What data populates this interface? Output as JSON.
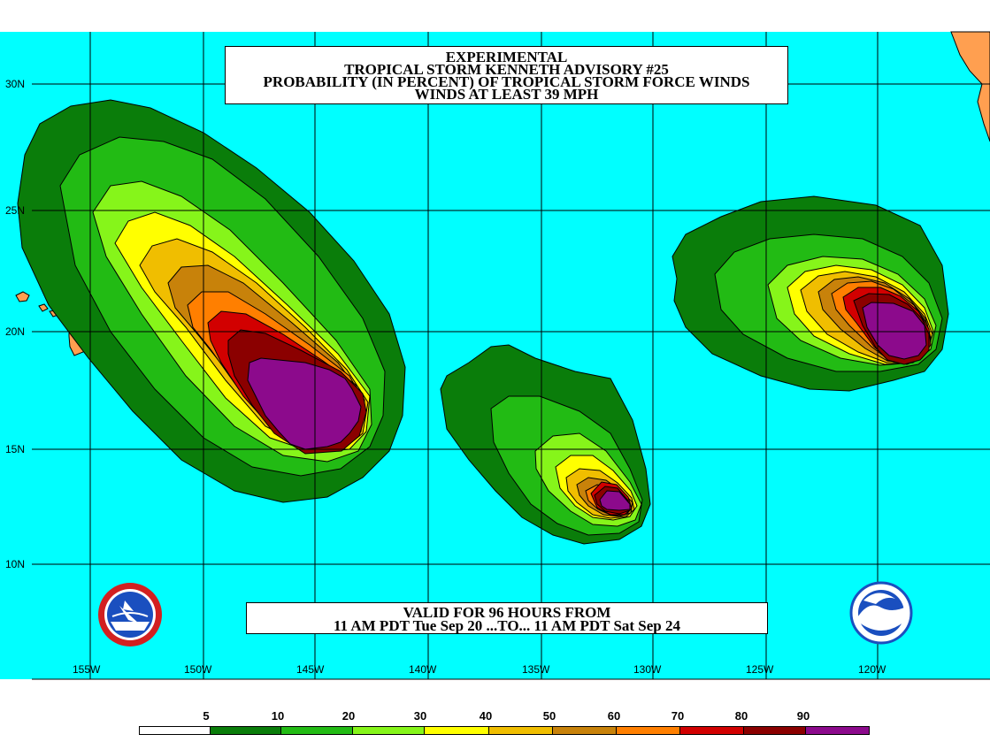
{
  "title": {
    "line1": "EXPERIMENTAL",
    "line2": "TROPICAL STORM KENNETH ADVISORY #25",
    "line3": "PROBABILITY (IN PERCENT) OF TROPICAL STORM FORCE WINDS",
    "line4": "WINDS AT LEAST 39 MPH"
  },
  "valid": {
    "line1": "VALID FOR 96 HOURS FROM",
    "line2": "11 AM PDT Tue Sep 20 ...TO... 11 AM PDT Sat Sep 24"
  },
  "lat_labels": [
    "30N",
    "25N",
    "20N",
    "15N",
    "10N"
  ],
  "lon_labels": [
    "155W",
    "150W",
    "145W",
    "140W",
    "135W",
    "130W",
    "125W",
    "120W"
  ],
  "legend": {
    "ticks": [
      "5",
      "10",
      "20",
      "30",
      "40",
      "50",
      "60",
      "70",
      "80",
      "90"
    ],
    "colors": [
      "#ffffff",
      "#0a7d0a",
      "#22bb14",
      "#86f51a",
      "#ffff00",
      "#f0be00",
      "#c8820a",
      "#ff7f00",
      "#d20000",
      "#8b0000",
      "#8c0a8c"
    ]
  },
  "colors": {
    "ocean": "#00ffff",
    "land": "#ff9f50",
    "grid": "#000000",
    "outline": "#000000"
  },
  "logos": {
    "left": "nws-logo",
    "right": "noaa-logo"
  }
}
